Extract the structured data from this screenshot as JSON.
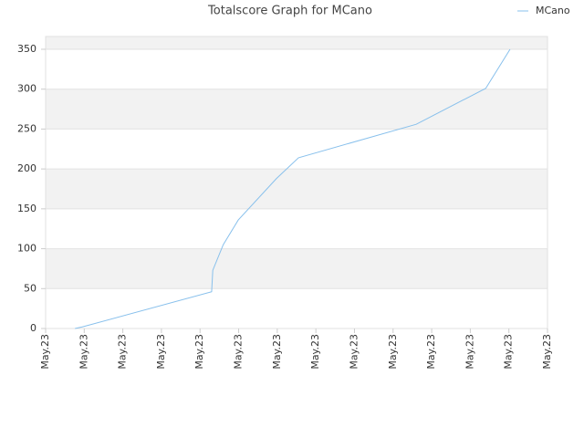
{
  "chart_data": {
    "type": "line",
    "title": "Totalscore Graph for MCano",
    "x": [
      0.76,
      0.95,
      4.3,
      4.33,
      4.6,
      4.99,
      5.98,
      6.55,
      9.6,
      11.4,
      12.03
    ],
    "series": [
      {
        "name": "MCano",
        "color": "#88c0ec",
        "values": [
          0,
          2,
          46,
          73,
          105,
          136,
          188,
          214,
          256,
          301,
          350
        ]
      }
    ],
    "xlim": [
      0,
      13
    ],
    "xticks": [
      {
        "value": 0,
        "label": "May.23"
      },
      {
        "value": 1,
        "label": "May.23"
      },
      {
        "value": 2,
        "label": "May.23"
      },
      {
        "value": 3,
        "label": "May.23"
      },
      {
        "value": 4,
        "label": "May.23"
      },
      {
        "value": 5,
        "label": "May.23"
      },
      {
        "value": 6,
        "label": "May.23"
      },
      {
        "value": 7,
        "label": "May.23"
      },
      {
        "value": 8,
        "label": "May.23"
      },
      {
        "value": 9,
        "label": "May.23"
      },
      {
        "value": 10,
        "label": "May.23"
      },
      {
        "value": 11,
        "label": "May.23"
      },
      {
        "value": 12,
        "label": "May.23"
      },
      {
        "value": 13,
        "label": "May.23"
      }
    ],
    "ylim": [
      0,
      366
    ],
    "yticks": [
      0,
      50,
      100,
      150,
      200,
      250,
      300,
      350
    ],
    "grid": true,
    "legend": "top-right"
  }
}
